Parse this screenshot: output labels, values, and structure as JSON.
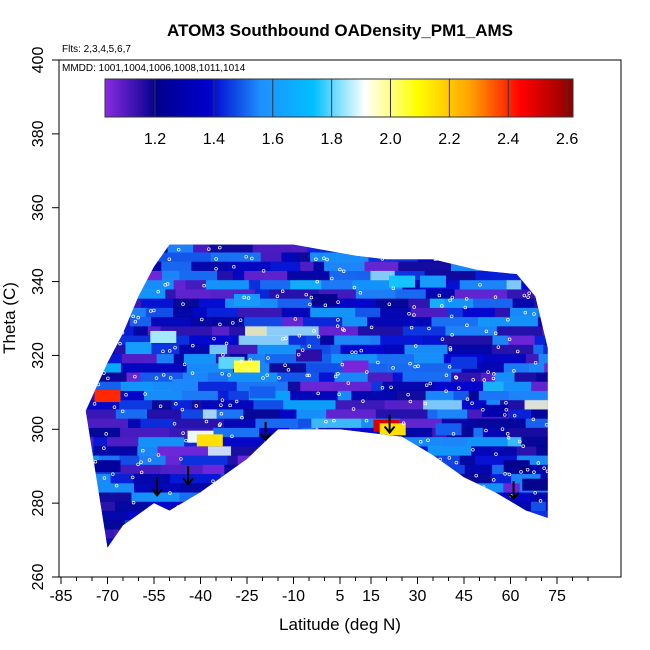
{
  "chart_data": {
    "type": "heatmap",
    "title": "ATOM3 Southbound OADensity_PM1_AMS",
    "subtitle_flights": "Flts: 2,3,4,5,6,7",
    "subtitle_dates": "MMDD: 1001,1004,1006,1008,1011,1014",
    "xlabel": "Latitude (deg N)",
    "ylabel": "Theta (C)",
    "xlim": [
      -85,
      85
    ],
    "ylim": [
      260,
      400
    ],
    "x_ticks": [
      "-85",
      "-70",
      "-55",
      "-40",
      "-25",
      "-10",
      "5",
      "15",
      "30",
      "45",
      "60",
      "75"
    ],
    "y_ticks": [
      "260",
      "280",
      "300",
      "320",
      "340",
      "360",
      "380",
      "400"
    ],
    "colorbar": {
      "range": [
        1.03,
        2.62
      ],
      "tick_labels": [
        "1.2",
        "1.4",
        "1.6",
        "1.8",
        "2.0",
        "2.2",
        "2.4",
        "2.6"
      ],
      "colors": [
        "#8a2be2",
        "#00008b",
        "#0000cd",
        "#1e90ff",
        "#00bfff",
        "#ffffff",
        "#ffff00",
        "#ffa500",
        "#ff0000",
        "#8b0000"
      ]
    },
    "lower_boundary": [
      {
        "lat": -70,
        "theta": 268
      },
      {
        "lat": -65,
        "theta": 274
      },
      {
        "lat": -55,
        "theta": 280
      },
      {
        "lat": -50,
        "theta": 278
      },
      {
        "lat": -40,
        "theta": 283
      },
      {
        "lat": -25,
        "theta": 292
      },
      {
        "lat": -15,
        "theta": 300
      },
      {
        "lat": 5,
        "theta": 300
      },
      {
        "lat": 15,
        "theta": 299
      },
      {
        "lat": 25,
        "theta": 298
      },
      {
        "lat": 35,
        "theta": 293
      },
      {
        "lat": 45,
        "theta": 287
      },
      {
        "lat": 55,
        "theta": 283
      },
      {
        "lat": 65,
        "theta": 278
      },
      {
        "lat": 72,
        "theta": 276
      }
    ],
    "upper_boundary": [
      {
        "lat": -77,
        "theta": 305
      },
      {
        "lat": -70,
        "theta": 318
      },
      {
        "lat": -65,
        "theta": 326
      },
      {
        "lat": -60,
        "theta": 336
      },
      {
        "lat": -55,
        "theta": 344
      },
      {
        "lat": -50,
        "theta": 350
      },
      {
        "lat": -30,
        "theta": 350
      },
      {
        "lat": -10,
        "theta": 350
      },
      {
        "lat": 10,
        "theta": 347
      },
      {
        "lat": 20,
        "theta": 346
      },
      {
        "lat": 35,
        "theta": 346
      },
      {
        "lat": 50,
        "theta": 343
      },
      {
        "lat": 62,
        "theta": 342
      },
      {
        "lat": 68,
        "theta": 336
      },
      {
        "lat": 72,
        "theta": 322
      }
    ],
    "regions": [
      {
        "lat": -70,
        "theta": 290,
        "value": 1.25
      },
      {
        "lat": -70,
        "theta": 309,
        "value": 2.4
      },
      {
        "lat": -60,
        "theta": 322,
        "value": 1.6
      },
      {
        "lat": -52,
        "theta": 325,
        "value": 1.85
      },
      {
        "lat": -45,
        "theta": 312,
        "value": 1.55
      },
      {
        "lat": -40,
        "theta": 298,
        "value": 1.9
      },
      {
        "lat": -37,
        "theta": 297,
        "value": 2.15
      },
      {
        "lat": -30,
        "theta": 318,
        "value": 1.8
      },
      {
        "lat": -25,
        "theta": 317,
        "value": 2.05
      },
      {
        "lat": -25,
        "theta": 335,
        "value": 1.6
      },
      {
        "lat": -20,
        "theta": 310,
        "value": 1.5
      },
      {
        "lat": -5,
        "theta": 320,
        "value": 1.15
      },
      {
        "lat": 0,
        "theta": 335,
        "value": 1.2
      },
      {
        "lat": 10,
        "theta": 317,
        "value": 1.05
      },
      {
        "lat": 20,
        "theta": 301,
        "value": 2.5
      },
      {
        "lat": 22,
        "theta": 300,
        "value": 2.15
      },
      {
        "lat": 25,
        "theta": 340,
        "value": 1.75
      },
      {
        "lat": 35,
        "theta": 340,
        "value": 1.6
      },
      {
        "lat": 40,
        "theta": 300,
        "value": 1.5
      },
      {
        "lat": 45,
        "theta": 318,
        "value": 1.45
      },
      {
        "lat": 55,
        "theta": 305,
        "value": 1.3
      },
      {
        "lat": 62,
        "theta": 290,
        "value": 1.2
      },
      {
        "lat": 68,
        "theta": 285,
        "value": 1.2
      }
    ],
    "arrows": [
      {
        "lat": -54,
        "theta": 287
      },
      {
        "lat": -44,
        "theta": 290
      },
      {
        "lat": -19,
        "theta": 302
      },
      {
        "lat": 21,
        "theta": 304
      },
      {
        "lat": 61,
        "theta": 286
      }
    ]
  }
}
